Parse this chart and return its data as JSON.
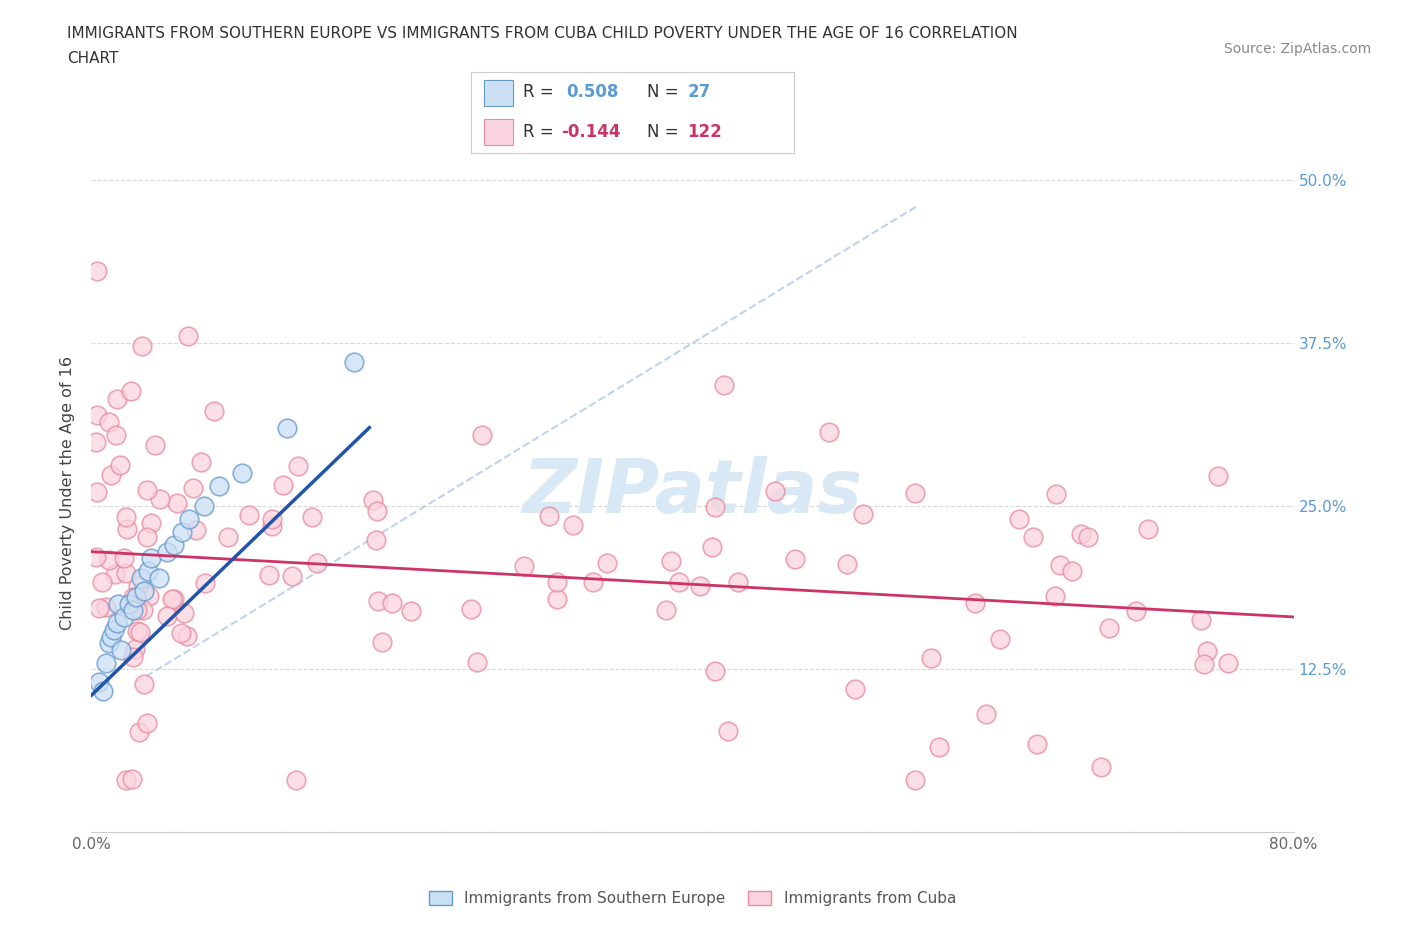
{
  "title_line1": "IMMIGRANTS FROM SOUTHERN EUROPE VS IMMIGRANTS FROM CUBA CHILD POVERTY UNDER THE AGE OF 16 CORRELATION",
  "title_line2": "CHART",
  "source_text": "Source: ZipAtlas.com",
  "ylabel": "Child Poverty Under the Age of 16",
  "xlim": [
    0.0,
    0.8
  ],
  "ylim": [
    0.0,
    0.52
  ],
  "blue_color_fill": "#cce0f5",
  "blue_color_edge": "#6699cc",
  "blue_line_color": "#2255aa",
  "pink_color_fill": "#fad4de",
  "pink_color_edge": "#e88aa0",
  "pink_line_color": "#cc3366",
  "dashed_line_color": "#b0c8e8",
  "watermark_color": "#d8e8f4",
  "ytick_color": "#5b9bd5",
  "background_color": "#ffffff",
  "blue_N": 27,
  "pink_N": 122,
  "blue_seed": 42,
  "pink_seed": 7,
  "legend_box_color": "#ffffff",
  "legend_border_color": "#cccccc"
}
